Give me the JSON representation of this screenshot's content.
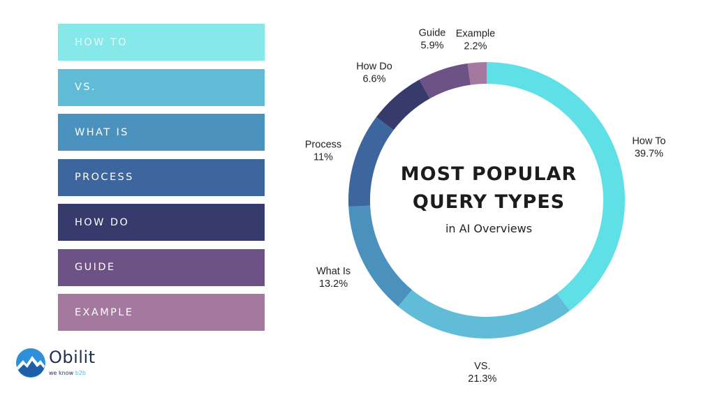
{
  "legend": [
    {
      "label": "HOW TO",
      "color": "#86e8e8",
      "text_color": "#e9fbfb"
    },
    {
      "label": "VS.",
      "color": "#60bcd6",
      "text_color": "#ffffff"
    },
    {
      "label": "WHAT IS",
      "color": "#4a92bd",
      "text_color": "#ffffff"
    },
    {
      "label": "PROCESS",
      "color": "#3d669e",
      "text_color": "#ffffff"
    },
    {
      "label": "HOW DO",
      "color": "#363b6c",
      "text_color": "#ffffff"
    },
    {
      "label": "GUIDE",
      "color": "#6d5286",
      "text_color": "#ffffff"
    },
    {
      "label": "EXAMPLE",
      "color": "#a5789f",
      "text_color": "#ffffff"
    }
  ],
  "chart_data": {
    "type": "pie",
    "title": "MOST POPULAR QUERY TYPES",
    "subtitle": "in AI Overviews",
    "slices": [
      {
        "label": "How To",
        "value": 39.7,
        "value_label": "39.7%",
        "color": "#5fe0e6"
      },
      {
        "label": "VS.",
        "value": 21.3,
        "value_label": "21.3%",
        "color": "#61bcd7"
      },
      {
        "label": "What Is",
        "value": 13.2,
        "value_label": "13.2%",
        "color": "#4a92bd"
      },
      {
        "label": "Process",
        "value": 11,
        "value_label": "11%",
        "color": "#3d669e"
      },
      {
        "label": "How Do",
        "value": 6.6,
        "value_label": "6.6%",
        "color": "#363b6c"
      },
      {
        "label": "Guide",
        "value": 5.9,
        "value_label": "5.9%",
        "color": "#6d5286"
      },
      {
        "label": "Example",
        "value": 2.2,
        "value_label": "2.2%",
        "color": "#a5789f"
      }
    ]
  },
  "brand": {
    "name": "Obilit",
    "tagline_prefix": "we know",
    "tagline_highlight": "b2b",
    "colors": {
      "primary": "#1f2e55",
      "accent": "#2f8fd8"
    }
  }
}
